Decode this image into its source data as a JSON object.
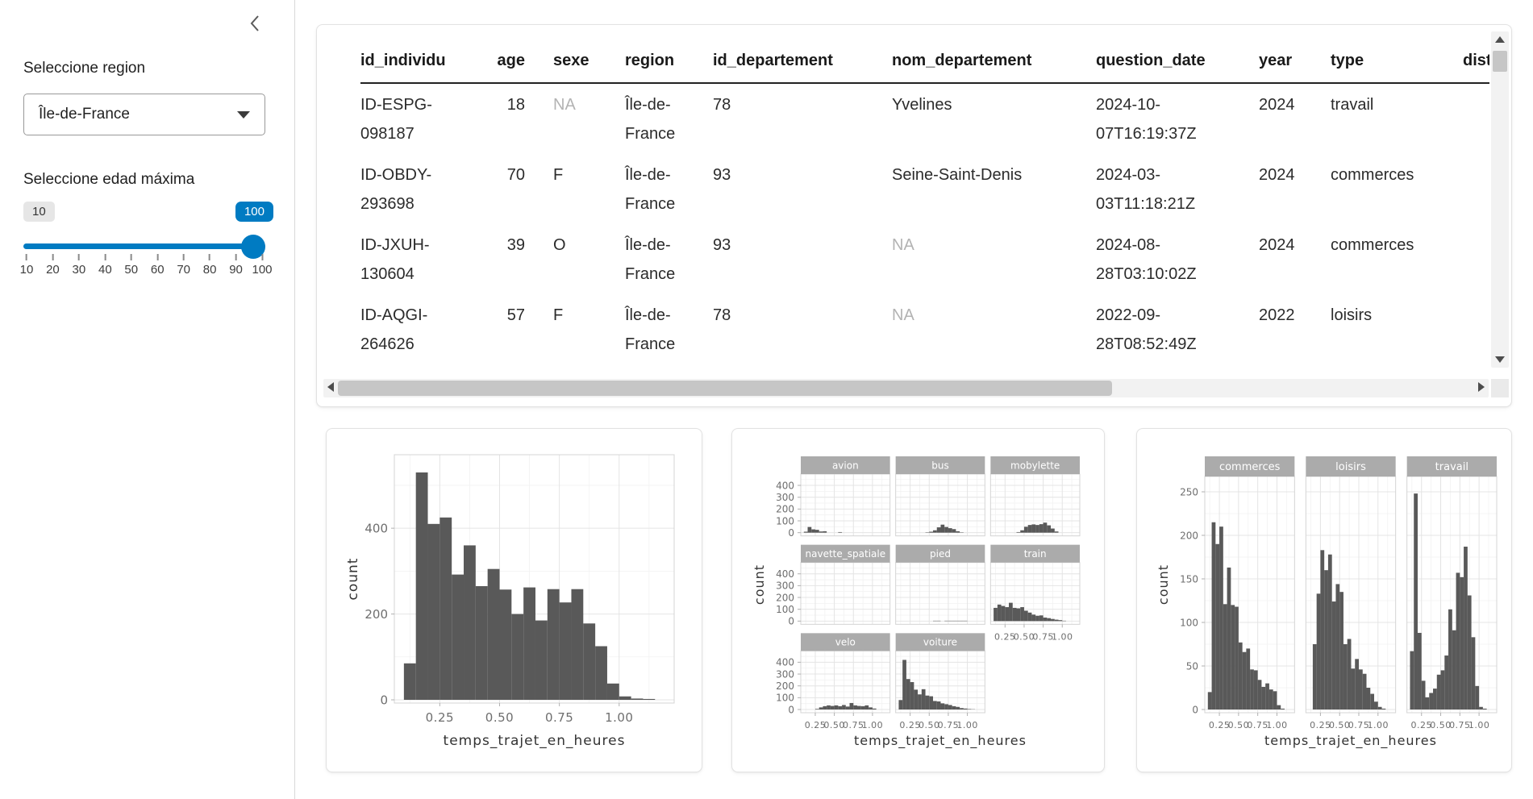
{
  "sidebar": {
    "collapse_icon": "chevron-left",
    "region": {
      "label": "Seleccione region",
      "value": "Île-de-France"
    },
    "age": {
      "label": "Seleccione edad máxima",
      "min_badge": "10",
      "value_badge": "100",
      "tick_labels": [
        "10",
        "20",
        "30",
        "40",
        "50",
        "60",
        "70",
        "80",
        "90",
        "100"
      ],
      "accent": "#007bc2"
    }
  },
  "table": {
    "na_color": "#b3b3b3",
    "columns": [
      {
        "label": "id_individu",
        "align": "left"
      },
      {
        "label": "age",
        "align": "right"
      },
      {
        "label": "sexe",
        "align": "left"
      },
      {
        "label": "region",
        "align": "left"
      },
      {
        "label": "id_departement",
        "align": "left"
      },
      {
        "label": "nom_departement",
        "align": "left"
      },
      {
        "label": "question_date",
        "align": "left"
      },
      {
        "label": "year",
        "align": "left"
      },
      {
        "label": "type",
        "align": "left"
      },
      {
        "label": "dist",
        "align": "left"
      }
    ],
    "rows": [
      [
        "ID-ESPG-098187",
        "18",
        "NA",
        "Île-de-France",
        "78",
        "Yvelines",
        "2024-10-07T16:19:37Z",
        "2024",
        "travail",
        ""
      ],
      [
        "ID-OBDY-293698",
        "70",
        "F",
        "Île-de-France",
        "93",
        "Seine-Saint-Denis",
        "2024-03-03T11:18:21Z",
        "2024",
        "commerces",
        ""
      ],
      [
        "ID-JXUH-130604",
        "39",
        "O",
        "Île-de-France",
        "93",
        "NA",
        "2024-08-28T03:10:02Z",
        "2024",
        "commerces",
        ""
      ],
      [
        "ID-AQGI-264626",
        "57",
        "F",
        "Île-de-France",
        "78",
        "NA",
        "2022-09-28T08:52:49Z",
        "2022",
        "loisirs",
        ""
      ]
    ]
  },
  "plot_style": {
    "bar_color": "#595959",
    "strip_color": "#ababab",
    "strip_text": "#ffffff",
    "grid_major": "#e4e4e4",
    "grid_minor": "#f2f2f2",
    "panel_border": "#d4d4d4",
    "tick_mark": "#b0b0b0",
    "tick_text": "#6e6e6e",
    "axis_label": "#333333"
  },
  "chart_data": [
    {
      "type": "bar",
      "subtype": "histogram",
      "xlabel": "temps_trajet_en_heures",
      "ylabel": "count",
      "bin_start": 0.1,
      "bin_width": 0.05,
      "x_ticks": [
        0.25,
        0.5,
        0.75,
        1.0
      ],
      "x_range": [
        0.06,
        1.23
      ],
      "y_ticks": [
        0,
        200,
        400
      ],
      "y_max": 560,
      "grid": {
        "cols": 1,
        "rows": 1
      },
      "legend": "none",
      "facets": [
        {
          "label": "",
          "values": [
            85,
            530,
            410,
            425,
            292,
            360,
            265,
            305,
            257,
            200,
            262,
            185,
            258,
            227,
            258,
            178,
            125,
            38,
            8,
            3,
            2
          ]
        }
      ]
    },
    {
      "type": "bar",
      "subtype": "histogram",
      "xlabel": "temps_trajet_en_heures",
      "ylabel": "count",
      "bin_start": 0.1,
      "bin_width": 0.05,
      "x_ticks": [
        0.25,
        0.5,
        0.75,
        1.0
      ],
      "x_range": [
        0.06,
        1.23
      ],
      "y_ticks": [
        0,
        100,
        200,
        300,
        400
      ],
      "y_max": 455,
      "grid": {
        "cols": 3,
        "rows": 3
      },
      "legend": "none",
      "facets": [
        {
          "label": "avion",
          "values": [
            8,
            48,
            28,
            24,
            10,
            12,
            0,
            0,
            0,
            5,
            0,
            0,
            0,
            0,
            0,
            0,
            0,
            0,
            0,
            0,
            0
          ]
        },
        {
          "label": "bus",
          "values": [
            0,
            0,
            0,
            0,
            0,
            0,
            0,
            3,
            8,
            20,
            45,
            68,
            48,
            38,
            30,
            12,
            3,
            0,
            0,
            0,
            0
          ]
        },
        {
          "label": "mobylette",
          "values": [
            0,
            0,
            0,
            0,
            0,
            0,
            5,
            20,
            50,
            65,
            70,
            65,
            72,
            85,
            62,
            35,
            10,
            0,
            0,
            0,
            0
          ]
        },
        {
          "label": "navette_spatiale",
          "values": [
            0,
            0,
            0,
            0,
            0,
            0,
            0,
            0,
            0,
            0,
            0,
            0,
            0,
            0,
            0,
            0,
            0,
            0,
            0,
            0,
            0
          ]
        },
        {
          "label": "pied",
          "values": [
            0,
            0,
            0,
            0,
            0,
            0,
            0,
            0,
            0,
            3,
            3,
            0,
            3,
            3,
            3,
            3,
            3,
            3,
            0,
            0,
            0
          ]
        },
        {
          "label": "train",
          "values": [
            112,
            140,
            128,
            118,
            155,
            112,
            108,
            118,
            88,
            72,
            55,
            45,
            48,
            30,
            25,
            18,
            12,
            8,
            3,
            0,
            0
          ]
        },
        {
          "label": "velo",
          "values": [
            0,
            0,
            0,
            5,
            18,
            28,
            35,
            30,
            35,
            28,
            38,
            25,
            55,
            35,
            30,
            28,
            35,
            18,
            8,
            0,
            0
          ]
        },
        {
          "label": "voiture",
          "values": [
            80,
            420,
            258,
            232,
            168,
            128,
            172,
            118,
            112,
            72,
            68,
            52,
            45,
            38,
            28,
            22,
            12,
            8,
            4,
            2,
            0
          ]
        }
      ]
    },
    {
      "type": "bar",
      "subtype": "histogram",
      "xlabel": "temps_trajet_en_heures",
      "ylabel": "count",
      "bin_start": 0.1,
      "bin_width": 0.05,
      "x_ticks": [
        0.25,
        0.5,
        0.75,
        1.0
      ],
      "x_range": [
        0.06,
        1.23
      ],
      "y_ticks": [
        0,
        50,
        100,
        150,
        200,
        250
      ],
      "y_max": 262,
      "grid": {
        "cols": 3,
        "rows": 1
      },
      "legend": "none",
      "facets": [
        {
          "label": "commerces",
          "values": [
            20,
            215,
            190,
            210,
            121,
            163,
            120,
            118,
            77,
            66,
            70,
            46,
            45,
            34,
            26,
            30,
            23,
            21,
            5,
            1,
            0
          ]
        },
        {
          "label": "loisirs",
          "values": [
            0,
            75,
            133,
            183,
            160,
            178,
            124,
            144,
            135,
            75,
            81,
            47,
            58,
            46,
            41,
            25,
            18,
            9,
            3,
            1,
            0
          ]
        },
        {
          "label": "travail",
          "values": [
            67,
            248,
            88,
            33,
            14,
            19,
            24,
            40,
            45,
            62,
            115,
            91,
            157,
            152,
            187,
            131,
            83,
            27,
            3,
            1,
            0
          ]
        }
      ]
    }
  ]
}
